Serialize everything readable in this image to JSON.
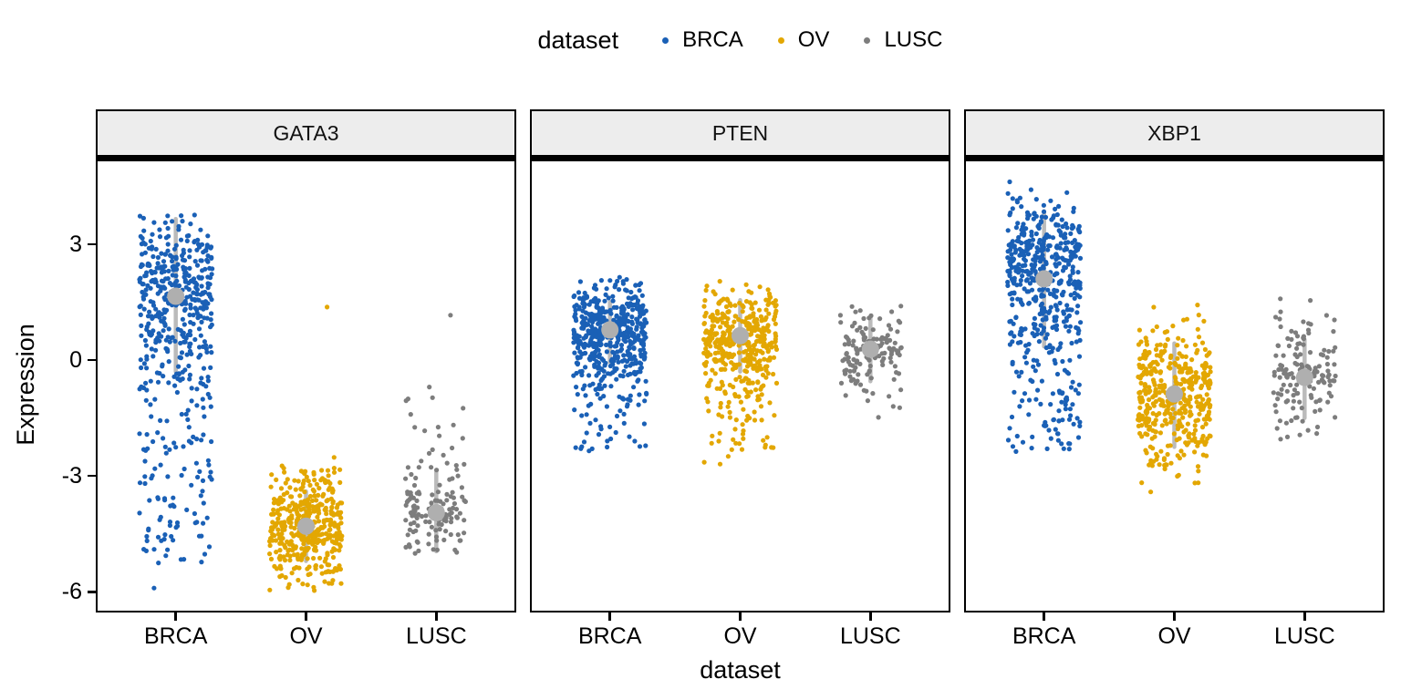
{
  "legend": {
    "title": "dataset",
    "items": [
      {
        "label": "BRCA",
        "color": "#1A60B6"
      },
      {
        "label": "OV",
        "color": "#E3A702"
      },
      {
        "label": "LUSC",
        "color": "#7D7D7D"
      }
    ]
  },
  "chart_data": {
    "type": "scatter",
    "subtype": "faceted jitter strip plot with mean and sd summary",
    "title": "",
    "xlabel": "dataset",
    "ylabel": "Expression",
    "categories": [
      "BRCA",
      "OV",
      "LUSC"
    ],
    "y_ticks": [
      3,
      0,
      -3,
      -6
    ],
    "ylim": [
      -6.6,
      5.3
    ],
    "grid": false,
    "legend_position": "top",
    "colors": {
      "BRCA": "#1A60B6",
      "OV": "#E3A702",
      "LUSC": "#7D7D7D"
    },
    "summary_style": {
      "mean_color": "#AFAFAF",
      "bar_color": "#BBBBBB"
    },
    "facets": [
      {
        "label": "GATA3",
        "groups": [
          {
            "dataset": "BRCA",
            "n": 520,
            "jw": 40,
            "mean": 1.65,
            "bar": [
              -0.3,
              3.65
            ],
            "mode": 2.0,
            "up": 0.8,
            "down": 1.2,
            "min": -6.2,
            "max": 4.0,
            "tail": {
              "frac": 0.28,
              "min": -5.3,
              "max": 0.8
            },
            "outliers": [
              -5.9
            ]
          },
          {
            "dataset": "OV",
            "n": 420,
            "jw": 40,
            "mean": -4.3,
            "bar": [
              -5.2,
              -3.4
            ],
            "mode": -4.35,
            "up": 0.8,
            "down": 0.7,
            "min": -6.0,
            "max": -2.4,
            "outliers": [
              1.37
            ]
          },
          {
            "dataset": "LUSC",
            "n": 140,
            "jw": 34,
            "mean": -3.95,
            "bar": [
              -4.95,
              -2.9
            ],
            "mode": -4.0,
            "up": 0.55,
            "down": 0.55,
            "min": -5.3,
            "max": -2.6,
            "tail": {
              "frac": 0.17,
              "min": -2.9,
              "max": -0.6
            },
            "outliers": [
              1.16
            ]
          }
        ]
      },
      {
        "label": "PTEN",
        "groups": [
          {
            "dataset": "BRCA",
            "n": 520,
            "jw": 40,
            "mean": 0.78,
            "bar": [
              -0.05,
              1.5
            ],
            "mode": 0.85,
            "up": 0.6,
            "down": 0.85,
            "min": -2.5,
            "max": 2.75,
            "tail": {
              "frac": 0.1,
              "min": -2.4,
              "max": -0.3
            }
          },
          {
            "dataset": "OV",
            "n": 430,
            "jw": 40,
            "mean": 0.63,
            "bar": [
              -0.3,
              1.55
            ],
            "mode": 0.75,
            "up": 0.55,
            "down": 0.9,
            "min": -2.85,
            "max": 2.05,
            "tail": {
              "frac": 0.12,
              "min": -2.7,
              "max": -0.5
            }
          },
          {
            "dataset": "LUSC",
            "n": 140,
            "jw": 34,
            "mean": 0.28,
            "bar": [
              -0.55,
              1.1
            ],
            "mode": 0.3,
            "up": 0.55,
            "down": 0.65,
            "min": -2.1,
            "max": 1.5
          }
        ]
      },
      {
        "label": "XBP1",
        "groups": [
          {
            "dataset": "BRCA",
            "n": 520,
            "jw": 40,
            "mean": 2.1,
            "bar": [
              0.35,
              3.85
            ],
            "mode": 2.6,
            "up": 0.8,
            "down": 1.1,
            "min": -2.65,
            "max": 4.7,
            "tail": {
              "frac": 0.25,
              "min": -2.4,
              "max": 1.2
            }
          },
          {
            "dataset": "OV",
            "n": 430,
            "jw": 40,
            "mean": -0.88,
            "bar": [
              -2.25,
              0.43
            ],
            "mode": -0.85,
            "up": 0.9,
            "down": 0.95,
            "min": -3.65,
            "max": 1.9
          },
          {
            "dataset": "LUSC",
            "n": 145,
            "jw": 34,
            "mean": -0.45,
            "bar": [
              -1.5,
              0.53
            ],
            "mode": -0.45,
            "up": 0.8,
            "down": 0.7,
            "min": -2.45,
            "max": 1.95
          }
        ]
      }
    ]
  }
}
